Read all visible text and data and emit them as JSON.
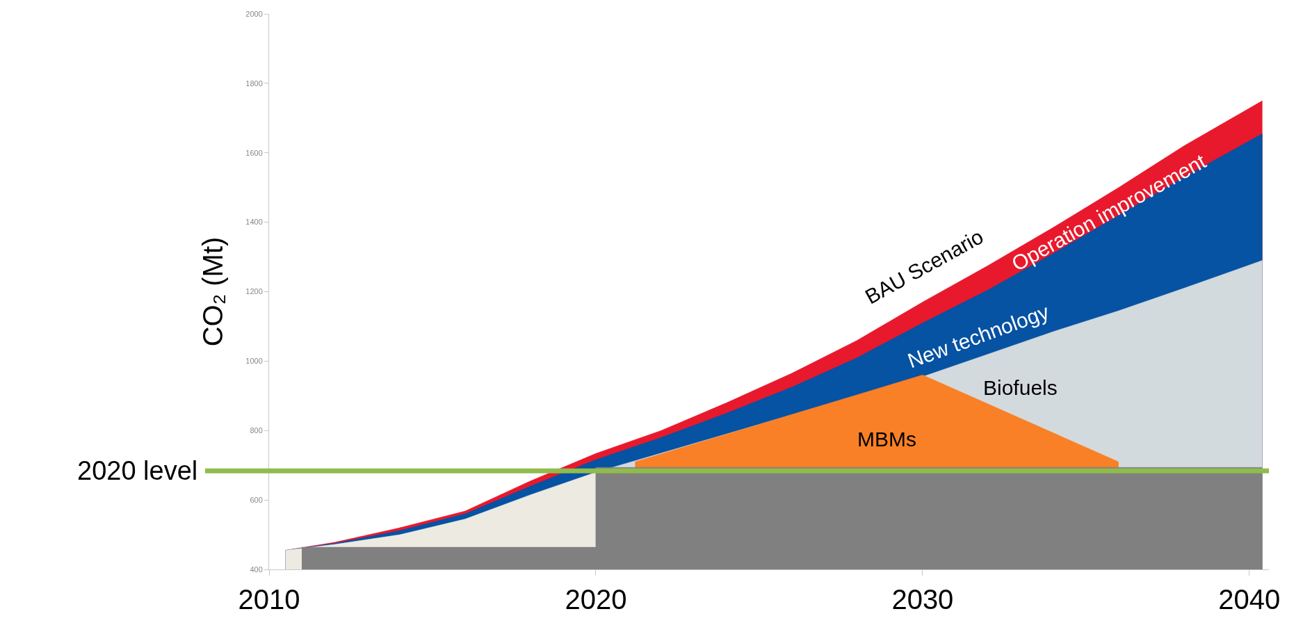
{
  "chart_data": {
    "type": "area",
    "ylabel": "CO₂ (Mt)",
    "xlim": [
      2010,
      2040.6
    ],
    "xticks": [
      2010,
      2020,
      2030,
      2040
    ],
    "ylim": [
      400,
      2000
    ],
    "yticks": [
      400,
      600,
      800,
      1000,
      1200,
      1400,
      1600,
      1800,
      2000
    ],
    "legend": false,
    "series": [
      {
        "name": "Operation improvement",
        "color": "#e8192c",
        "x": [
          2010.5,
          2012,
          2014,
          2016,
          2018,
          2020,
          2022,
          2024,
          2026,
          2028,
          2030,
          2032,
          2034,
          2036,
          2038,
          2040.4
        ],
        "values": [
          455,
          478,
          520,
          568,
          655,
          734,
          800,
          880,
          965,
          1060,
          1170,
          1275,
          1385,
          1500,
          1620,
          1750
        ]
      },
      {
        "name": "New technology",
        "color": "#0652a3",
        "x": [
          2010.5,
          2012,
          2014,
          2016,
          2018,
          2020,
          2022,
          2024,
          2026,
          2028,
          2030,
          2032,
          2034,
          2036,
          2038,
          2040.4
        ],
        "values": [
          455,
          475,
          512,
          560,
          640,
          716,
          780,
          850,
          925,
          1010,
          1110,
          1205,
          1310,
          1420,
          1530,
          1655
        ]
      },
      {
        "name": "Biofuels",
        "color": "#d3dadd",
        "x": [
          2020,
          2022,
          2024,
          2026,
          2028,
          2030,
          2032,
          2034,
          2036,
          2038,
          2040.4
        ],
        "values": [
          680,
          735,
          790,
          845,
          900,
          955,
          1020,
          1085,
          1145,
          1210,
          1290
        ]
      },
      {
        "color": "#edebe1",
        "x": [
          2010.5,
          2012,
          2014,
          2016,
          2018,
          2020
        ],
        "values": [
          455,
          472,
          500,
          545,
          615,
          680
        ]
      },
      {
        "name": "MBMs",
        "color": "#f98026",
        "x": [
          2021.2,
          2030,
          2036
        ],
        "values": [
          710,
          960,
          710
        ]
      },
      {
        "color": "#808080",
        "x": [
          2011,
          2020,
          2020,
          2040.4
        ],
        "values": [
          464,
          464,
          694,
          694
        ]
      }
    ],
    "ref_lines": [
      {
        "axis": "y",
        "value": 684,
        "label": "2020 level",
        "color": "#8fbc4c"
      }
    ],
    "annotations": [
      "BAU Scenario"
    ]
  }
}
